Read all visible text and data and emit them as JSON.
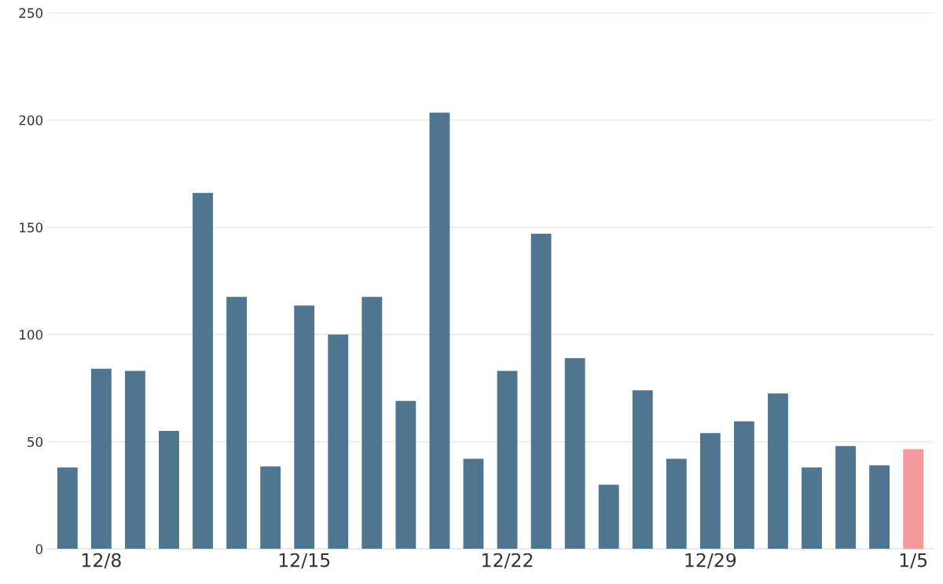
{
  "chart_data": {
    "type": "bar",
    "categories": [
      null,
      "12/8",
      null,
      null,
      null,
      null,
      null,
      "12/15",
      null,
      null,
      null,
      null,
      null,
      "12/22",
      null,
      null,
      null,
      null,
      null,
      "12/29",
      null,
      null,
      null,
      null,
      null,
      "1/5"
    ],
    "values": [
      38,
      84,
      83,
      55,
      166,
      117.5,
      38.5,
      113.5,
      100,
      117.5,
      69,
      203.5,
      42,
      83,
      147,
      89,
      30,
      74,
      42,
      54,
      59.5,
      72.5,
      38,
      48,
      39,
      46.5
    ],
    "colors": [
      "#4f7590",
      "#4f7590",
      "#4f7590",
      "#4f7590",
      "#4f7590",
      "#4f7590",
      "#4f7590",
      "#4f7590",
      "#4f7590",
      "#4f7590",
      "#4f7590",
      "#4f7590",
      "#4f7590",
      "#4f7590",
      "#4f7590",
      "#4f7590",
      "#4f7590",
      "#4f7590",
      "#4f7590",
      "#4f7590",
      "#4f7590",
      "#4f7590",
      "#4f7590",
      "#4f7590",
      "#4f7590",
      "#f4989c"
    ],
    "ylim": [
      0,
      250
    ],
    "yticks": [
      0,
      50,
      100,
      150,
      200,
      250
    ],
    "grid": "y"
  }
}
